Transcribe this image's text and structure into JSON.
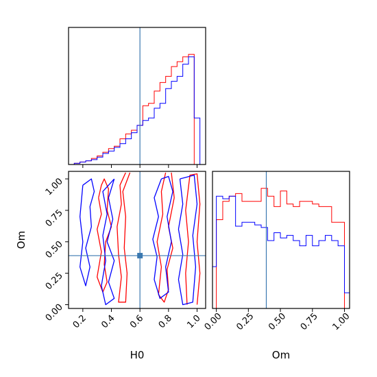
{
  "chart_data": {
    "type": "corner",
    "parameters": [
      "H0",
      "Om"
    ],
    "truths": {
      "H0": 0.6,
      "Om": 0.39
    },
    "colors": {
      "series_a": "#ff0000",
      "series_b": "#0000ff",
      "truth": "#3a78b0"
    },
    "panels": [
      {
        "id": "hist-H0",
        "type": "histogram-step",
        "x_range": [
          0.1,
          1.06
        ],
        "y_range": [
          0,
          1.12
        ],
        "x_ticks": [
          0.2,
          0.4,
          0.6,
          0.8,
          1.0
        ],
        "y_ticks": [],
        "series": [
          {
            "name": "",
            "color": "#ff0000",
            "edges": [
              0.1,
              0.14,
              0.18,
              0.22,
              0.26,
              0.3,
              0.34,
              0.38,
              0.42,
              0.46,
              0.5,
              0.54,
              0.58,
              0.62,
              0.66,
              0.7,
              0.74,
              0.78,
              0.82,
              0.86,
              0.9,
              0.94,
              0.98,
              1.02
            ],
            "values": [
              0.0,
              0.01,
              0.02,
              0.03,
              0.05,
              0.07,
              0.1,
              0.13,
              0.15,
              0.21,
              0.25,
              0.28,
              0.32,
              0.48,
              0.5,
              0.6,
              0.67,
              0.72,
              0.8,
              0.84,
              0.88,
              0.9,
              0.0
            ]
          },
          {
            "name": "",
            "color": "#0000ff",
            "edges": [
              0.1,
              0.14,
              0.18,
              0.22,
              0.26,
              0.3,
              0.34,
              0.38,
              0.42,
              0.46,
              0.5,
              0.54,
              0.58,
              0.62,
              0.66,
              0.7,
              0.74,
              0.78,
              0.82,
              0.86,
              0.9,
              0.94,
              0.98,
              1.02
            ],
            "values": [
              0.0,
              0.01,
              0.02,
              0.03,
              0.04,
              0.06,
              0.09,
              0.11,
              0.14,
              0.17,
              0.21,
              0.26,
              0.32,
              0.36,
              0.38,
              0.46,
              0.5,
              0.62,
              0.68,
              0.72,
              0.82,
              0.88,
              0.38
            ]
          }
        ]
      },
      {
        "id": "hist-Om",
        "type": "histogram-step",
        "x_range": [
          -0.03,
          1.04
        ],
        "y_range": [
          0,
          1.05
        ],
        "x_ticks": [
          0.0,
          0.25,
          0.5,
          0.75,
          1.0
        ],
        "x_tick_labels": [
          "0.00",
          "0.25",
          "0.50",
          "0.75",
          "1.00"
        ],
        "y_ticks": [],
        "series": [
          {
            "name": "",
            "color": "#ff0000",
            "edges": [
              -0.03,
              0.0,
              0.05,
              0.1,
              0.15,
              0.2,
              0.25,
              0.3,
              0.35,
              0.4,
              0.45,
              0.5,
              0.55,
              0.6,
              0.65,
              0.7,
              0.75,
              0.8,
              0.85,
              0.9,
              0.95,
              1.0,
              1.04
            ],
            "values": [
              0.0,
              0.68,
              0.82,
              0.86,
              0.88,
              0.82,
              0.82,
              0.82,
              0.92,
              0.86,
              0.78,
              0.9,
              0.8,
              0.78,
              0.82,
              0.82,
              0.8,
              0.78,
              0.78,
              0.66,
              0.66,
              0.0
            ]
          },
          {
            "name": "",
            "color": "#0000ff",
            "edges": [
              -0.03,
              0.0,
              0.05,
              0.1,
              0.15,
              0.2,
              0.25,
              0.3,
              0.35,
              0.4,
              0.45,
              0.5,
              0.55,
              0.6,
              0.65,
              0.7,
              0.75,
              0.8,
              0.85,
              0.9,
              0.95,
              1.0,
              1.04
            ],
            "values": [
              0.32,
              0.86,
              0.84,
              0.86,
              0.63,
              0.66,
              0.66,
              0.64,
              0.62,
              0.52,
              0.58,
              0.54,
              0.56,
              0.52,
              0.48,
              0.56,
              0.48,
              0.52,
              0.56,
              0.52,
              0.48,
              0.12
            ]
          }
        ]
      },
      {
        "id": "contour-H0-Om",
        "type": "contour",
        "x_range": [
          0.1,
          1.06
        ],
        "y_range": [
          -0.03,
          1.06
        ],
        "x_ticks": [
          0.2,
          0.4,
          0.6,
          0.8,
          1.0
        ],
        "x_tick_labels": [
          "0.2",
          "0.4",
          "0.6",
          "0.8",
          "1.0"
        ],
        "y_ticks": [
          0.0,
          0.25,
          0.5,
          0.75,
          1.0
        ],
        "y_tick_labels": [
          "0.00",
          "0.25",
          "0.50",
          "0.75",
          "1.00"
        ],
        "xlabel": "H0",
        "ylabel": "Om",
        "truth_point": {
          "x": 0.6,
          "y": 0.39
        },
        "contours": [
          {
            "name": "",
            "color": "#ff0000",
            "points": [
              [
                0.31,
                0.85
              ],
              [
                0.33,
                0.95
              ],
              [
                0.35,
                1.0
              ],
              [
                0.38,
                0.92
              ],
              [
                0.37,
                0.75
              ],
              [
                0.4,
                0.62
              ],
              [
                0.36,
                0.5
              ],
              [
                0.35,
                0.32
              ],
              [
                0.37,
                0.18
              ],
              [
                0.34,
                0.1
              ],
              [
                0.3,
                0.22
              ],
              [
                0.33,
                0.42
              ],
              [
                0.3,
                0.6
              ],
              [
                0.33,
                0.72
              ],
              [
                0.31,
                0.85
              ]
            ]
          },
          {
            "name": "",
            "color": "#ff0000",
            "points": [
              [
                0.5,
                1.05
              ],
              [
                0.46,
                0.95
              ],
              [
                0.47,
                0.8
              ],
              [
                0.44,
                0.62
              ],
              [
                0.45,
                0.4
              ],
              [
                0.47,
                0.22
              ],
              [
                0.45,
                0.02
              ],
              [
                0.5,
                0.02
              ],
              [
                0.51,
                0.25
              ],
              [
                0.49,
                0.45
              ],
              [
                0.5,
                0.7
              ],
              [
                0.48,
                0.9
              ],
              [
                0.53,
                1.05
              ]
            ]
          },
          {
            "name": "",
            "color": "#ff0000",
            "points": [
              [
                0.82,
                1.05
              ],
              [
                0.84,
                0.85
              ],
              [
                0.8,
                0.62
              ],
              [
                0.83,
                0.45
              ],
              [
                0.79,
                0.28
              ],
              [
                0.8,
                0.12
              ],
              [
                0.77,
                0.02
              ],
              [
                0.73,
                0.08
              ],
              [
                0.75,
                0.3
              ],
              [
                0.72,
                0.5
              ],
              [
                0.76,
                0.72
              ],
              [
                0.75,
                0.9
              ],
              [
                0.78,
                1.05
              ]
            ]
          },
          {
            "name": "",
            "color": "#ff0000",
            "points": [
              [
                0.93,
                0.0
              ],
              [
                0.92,
                0.25
              ],
              [
                0.94,
                0.5
              ],
              [
                0.92,
                0.75
              ],
              [
                0.95,
                1.03
              ],
              [
                1.0,
                1.04
              ],
              [
                1.02,
                0.8
              ],
              [
                1.0,
                0.5
              ],
              [
                1.02,
                0.25
              ],
              [
                1.0,
                0.0
              ]
            ]
          },
          {
            "name": "",
            "color": "#0000ff",
            "points": [
              [
                0.2,
                0.95
              ],
              [
                0.26,
                1.0
              ],
              [
                0.28,
                0.9
              ],
              [
                0.25,
                0.78
              ],
              [
                0.26,
                0.62
              ],
              [
                0.22,
                0.45
              ],
              [
                0.25,
                0.3
              ],
              [
                0.22,
                0.15
              ],
              [
                0.18,
                0.3
              ],
              [
                0.2,
                0.5
              ],
              [
                0.18,
                0.7
              ],
              [
                0.2,
                0.95
              ]
            ]
          },
          {
            "name": "",
            "color": "#0000ff",
            "points": [
              [
                0.42,
                1.0
              ],
              [
                0.38,
                0.85
              ],
              [
                0.41,
                0.68
              ],
              [
                0.37,
                0.5
              ],
              [
                0.42,
                0.35
              ],
              [
                0.38,
                0.18
              ],
              [
                0.42,
                0.05
              ],
              [
                0.36,
                0.0
              ],
              [
                0.33,
                0.15
              ],
              [
                0.36,
                0.35
              ],
              [
                0.34,
                0.55
              ],
              [
                0.37,
                0.72
              ],
              [
                0.34,
                0.9
              ],
              [
                0.42,
                1.0
              ]
            ]
          },
          {
            "name": "",
            "color": "#0000ff",
            "points": [
              [
                0.75,
                1.0
              ],
              [
                0.7,
                0.85
              ],
              [
                0.73,
                0.7
              ],
              [
                0.69,
                0.52
              ],
              [
                0.72,
                0.38
              ],
              [
                0.7,
                0.2
              ],
              [
                0.74,
                0.05
              ],
              [
                0.8,
                0.1
              ],
              [
                0.78,
                0.3
              ],
              [
                0.82,
                0.5
              ],
              [
                0.79,
                0.7
              ],
              [
                0.83,
                0.9
              ],
              [
                0.8,
                1.02
              ],
              [
                0.75,
                1.0
              ]
            ]
          },
          {
            "name": "",
            "color": "#0000ff",
            "points": [
              [
                0.88,
                1.0
              ],
              [
                0.9,
                0.8
              ],
              [
                0.87,
                0.6
              ],
              [
                0.9,
                0.4
              ],
              [
                0.87,
                0.2
              ],
              [
                0.9,
                0.0
              ],
              [
                0.97,
                0.02
              ],
              [
                0.99,
                0.3
              ],
              [
                0.97,
                0.55
              ],
              [
                1.0,
                0.8
              ],
              [
                0.98,
                1.03
              ],
              [
                0.88,
                1.0
              ]
            ]
          }
        ]
      }
    ]
  }
}
